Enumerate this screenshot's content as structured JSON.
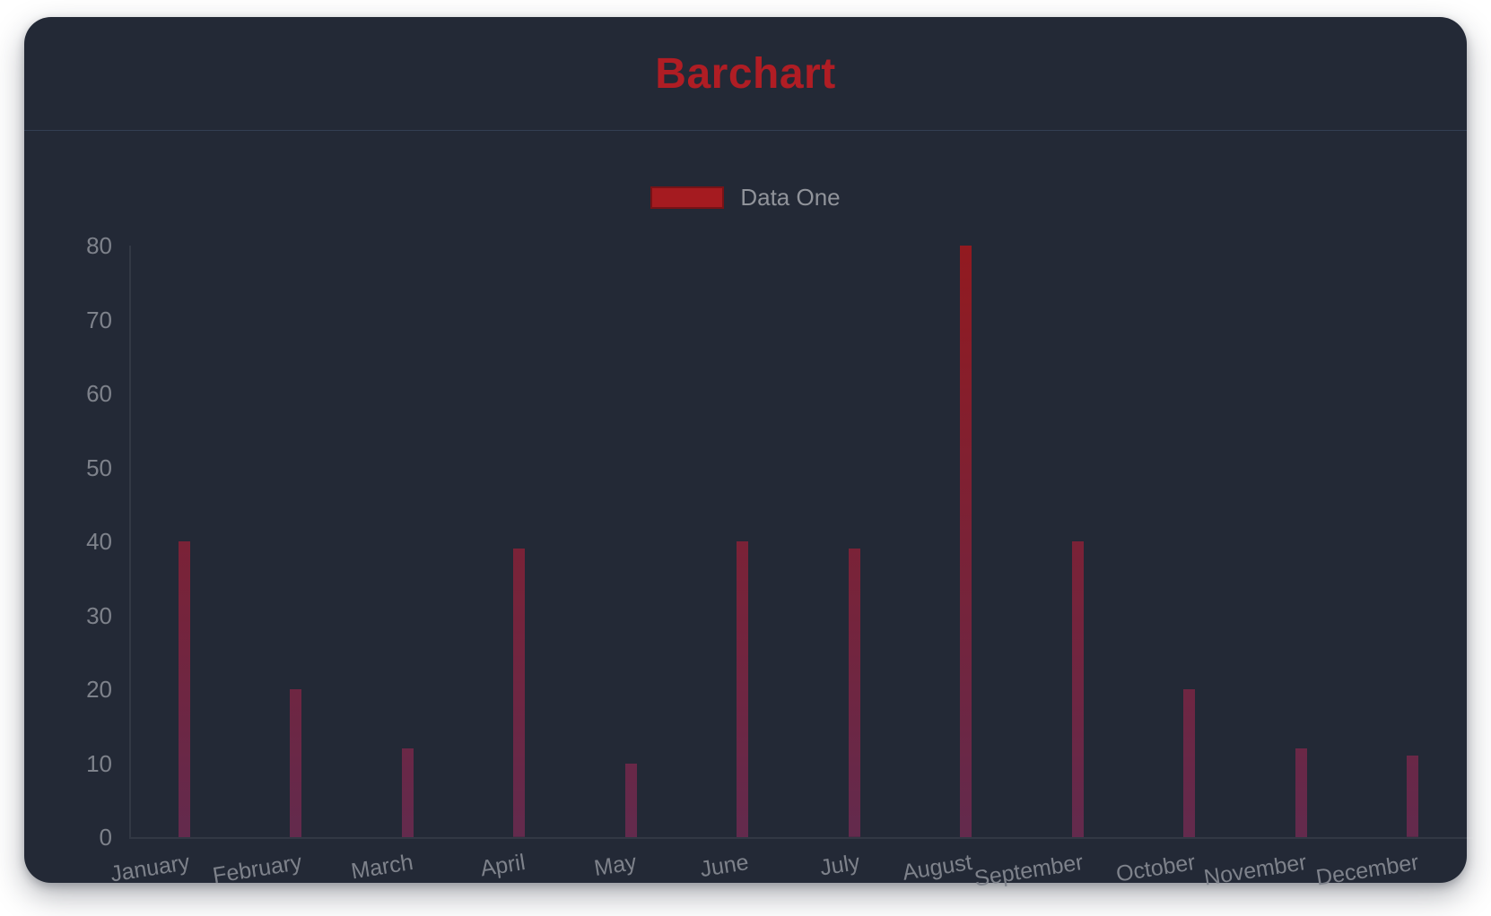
{
  "window": {
    "title": "Barchart"
  },
  "chart_data": {
    "type": "bar",
    "title": "Barchart",
    "categories": [
      "January",
      "February",
      "March",
      "April",
      "May",
      "June",
      "July",
      "August",
      "September",
      "October",
      "November",
      "December"
    ],
    "series": [
      {
        "name": "Data One",
        "values": [
          40,
          20,
          12,
          39,
          10,
          40,
          39,
          80,
          40,
          20,
          12,
          11
        ]
      }
    ],
    "xlabel": "",
    "ylabel": "",
    "ylim": [
      0,
      80
    ],
    "yticks": [
      0,
      10,
      20,
      30,
      40,
      50,
      60,
      70,
      80
    ],
    "grid": false,
    "legend_position": "top-center",
    "x_tick_rotation_deg": -9,
    "colors": {
      "page_background": "#ffffff",
      "card_background": "#232936",
      "title_text": "#b01d24",
      "legend_swatch": "#a51b20",
      "legend_text": "#90939a",
      "axis_text": "#7e828b",
      "axis_line": "rgba(255,255,255,0.07)",
      "bar_gradient_top": "#921a20",
      "bar_gradient_bottom": "#632a4d"
    }
  }
}
